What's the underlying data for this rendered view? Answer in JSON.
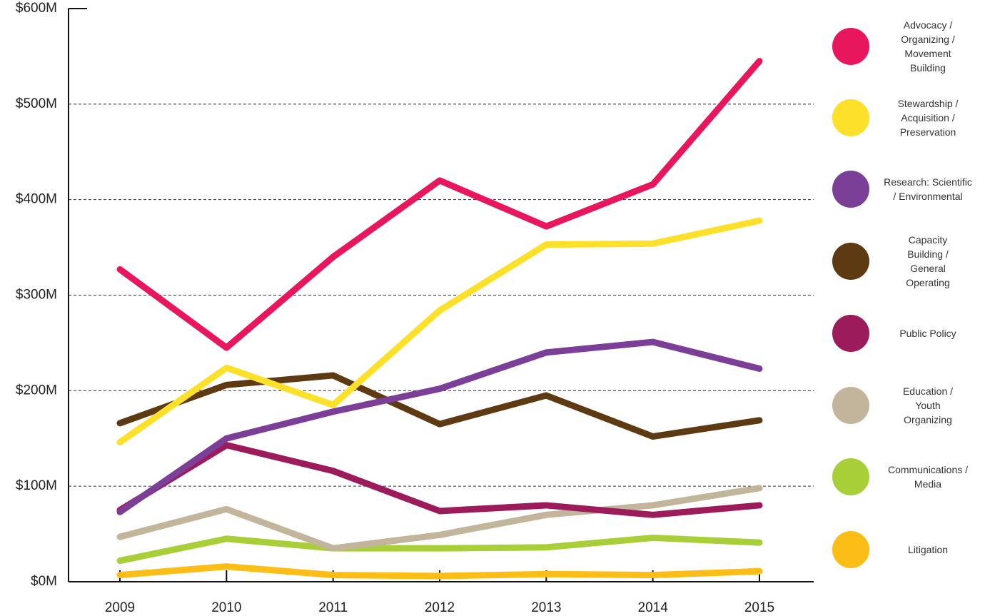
{
  "chart_data": {
    "type": "line",
    "x": [
      "2009",
      "2010",
      "2011",
      "2012",
      "2013",
      "2014",
      "2015"
    ],
    "ylim": [
      0,
      600
    ],
    "yticks": [
      {
        "value": 0,
        "label": "$0M"
      },
      {
        "value": 100,
        "label": "$100M"
      },
      {
        "value": 200,
        "label": "$200M"
      },
      {
        "value": 300,
        "label": "$300M"
      },
      {
        "value": 400,
        "label": "$400M"
      },
      {
        "value": 500,
        "label": "$500M"
      },
      {
        "value": 600,
        "label": "$600M"
      }
    ],
    "grid": true,
    "series": [
      {
        "name": "Advocacy / Organizing / Movement Building",
        "color": "#e8175d",
        "values": [
          327,
          245,
          340,
          420,
          372,
          416,
          545
        ]
      },
      {
        "name": "Stewardship / Acquisition / Preservation",
        "color": "#fde02a",
        "values": [
          146,
          224,
          185,
          284,
          353,
          354,
          378
        ]
      },
      {
        "name": "Research: Scientific / Environmental",
        "color": "#7b3f98",
        "values": [
          73,
          150,
          178,
          202,
          240,
          251,
          223
        ]
      },
      {
        "name": "Capacity Building / General Operating",
        "color": "#5e3a12",
        "values": [
          166,
          206,
          216,
          165,
          195,
          152,
          169
        ]
      },
      {
        "name": "Public Policy",
        "color": "#9c1c5b",
        "values": [
          75,
          143,
          116,
          74,
          80,
          70,
          80
        ]
      },
      {
        "name": "Education / Youth Organizing",
        "color": "#c2b59b",
        "values": [
          47,
          76,
          35,
          49,
          70,
          80,
          98
        ]
      },
      {
        "name": "Communications / Media",
        "color": "#a8cf38",
        "values": [
          22,
          45,
          35,
          35,
          36,
          46,
          41
        ]
      },
      {
        "name": "Litigation",
        "color": "#fbbd16",
        "values": [
          7,
          16,
          7,
          6,
          8,
          7,
          11
        ]
      }
    ]
  }
}
